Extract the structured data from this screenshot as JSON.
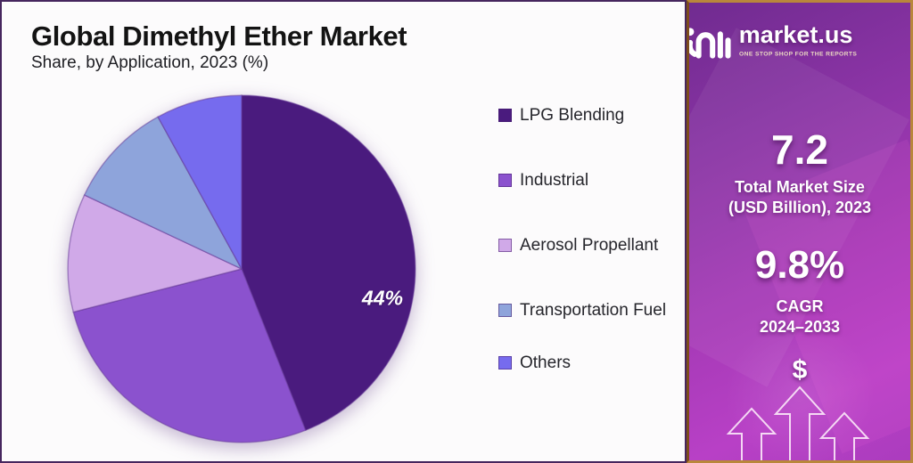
{
  "page": {
    "title": "Global Dimethyl Ether Market",
    "subtitle": "Share, by Application, 2023 (%)"
  },
  "chart_data": {
    "type": "pie",
    "title": "Global Dimethyl Ether Market Share, by Application, 2023 (%)",
    "categories": [
      "LPG Blending",
      "Industrial",
      "Aerosol Propellant",
      "Transportation Fuel",
      "Others"
    ],
    "values": [
      44,
      27,
      11,
      10,
      8
    ],
    "unit": "%",
    "colors": [
      "#4a1b7e",
      "#8b52ce",
      "#d0a9e8",
      "#8ea4db",
      "#766bee"
    ],
    "slice_border_color": "rgba(100,55,150,0.5)",
    "start_angle_deg": 0,
    "direction": "clockwise",
    "legend_position": "right",
    "labeled_slice": {
      "category": "LPG Blending",
      "label": "44%"
    }
  },
  "sidebar": {
    "brand": {
      "name": "market.us",
      "tagline": "ONE STOP SHOP FOR THE REPORTS"
    },
    "stats": [
      {
        "value": "7.2",
        "label_line1": "Total Market Size",
        "label_line2": "(USD Billion), 2023"
      },
      {
        "value": "9.8%",
        "label_line1": "CAGR",
        "label_line2": "2024–2033"
      }
    ],
    "icons": {
      "dollar": "$",
      "growth_arrows": "three upward outline arrows"
    },
    "colors": {
      "border": "#b9873b",
      "gradient_top": "#702b90",
      "gradient_bottom": "#b840c6"
    }
  },
  "theme": {
    "panel_border": "#46265e",
    "panel_background": "#fcfbfc",
    "title_color": "#131313"
  }
}
